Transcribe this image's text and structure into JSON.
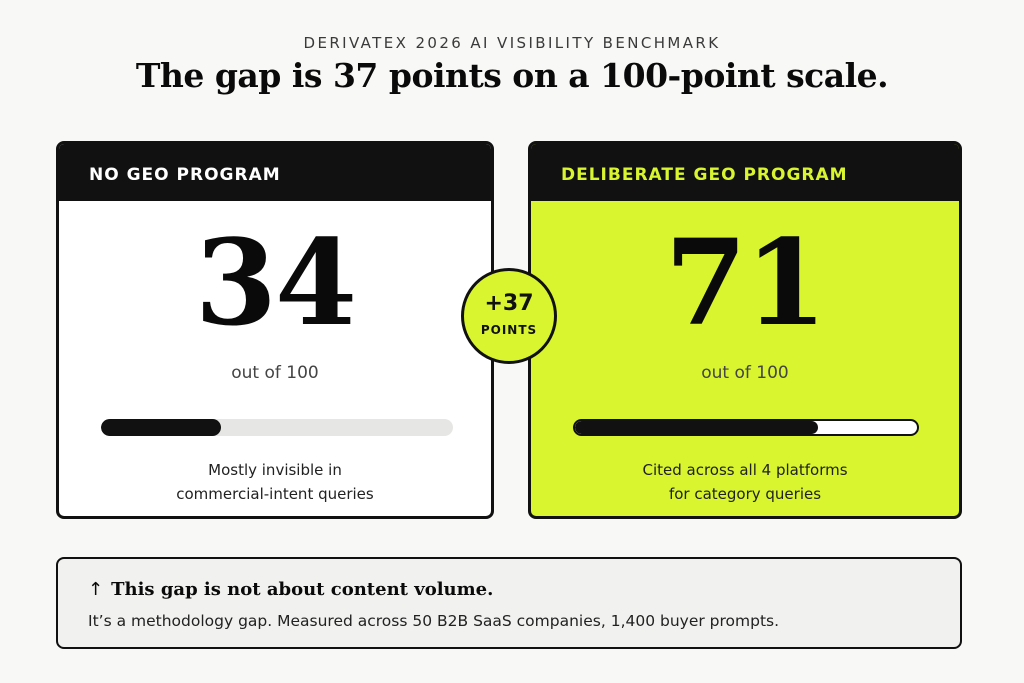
{
  "header": {
    "kicker": "DERIVATEX 2026 AI VISIBILITY BENCHMARK",
    "headline": "The gap is 37 points on a 100-point scale."
  },
  "cards": {
    "left": {
      "title": "NO GEO PROGRAM",
      "score": "34",
      "out_of": "out of 100",
      "progress_fraction": 0.34,
      "caption_line1": "Mostly invisible in",
      "caption_line2": "commercial-intent queries",
      "background": "#ffffff"
    },
    "right": {
      "title": "DELIBERATE GEO PROGRAM",
      "score": "71",
      "out_of": "out of 100",
      "progress_fraction": 0.71,
      "caption_line1": "Cited across all 4 platforms",
      "caption_line2": "for category queries",
      "background": "#d8f52f"
    }
  },
  "delta": {
    "value": "+37",
    "unit": "POINTS"
  },
  "note": {
    "icon": "arrow-up-icon",
    "arrow": "↑",
    "title": "This gap is not about content volume.",
    "body": "It’s a methodology gap. Measured across 50 B2B SaaS companies, 1,400 buyer prompts."
  },
  "colors": {
    "accent": "#d8f52f",
    "ink": "#111111",
    "page": "#f8f8f6"
  }
}
